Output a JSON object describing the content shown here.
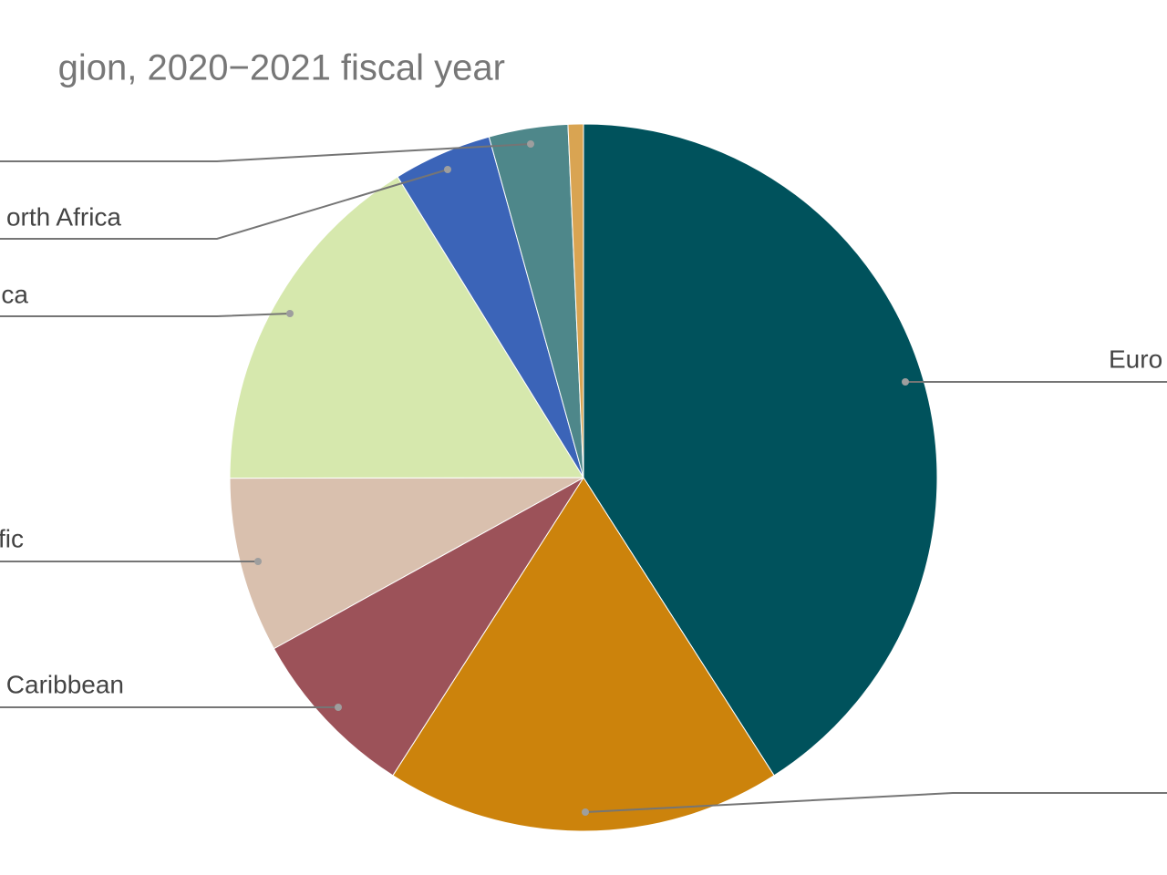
{
  "chart_data": {
    "type": "pie",
    "title": "gion, 2020−2021 fiscal year",
    "categories": [
      "Euro",
      null,
      "Caribbean",
      "fic",
      "ca",
      "orth Africa",
      null,
      null
    ],
    "values": [
      40.9,
      18.1,
      7.9,
      8.0,
      16.2,
      4.5,
      3.6,
      0.7
    ],
    "colors": [
      "#00525c",
      "#cc830c",
      "#9c5259",
      "#d9c0ae",
      "#d6e8ad",
      "#3b64b8",
      "#4e878a",
      "#d9a452"
    ]
  }
}
